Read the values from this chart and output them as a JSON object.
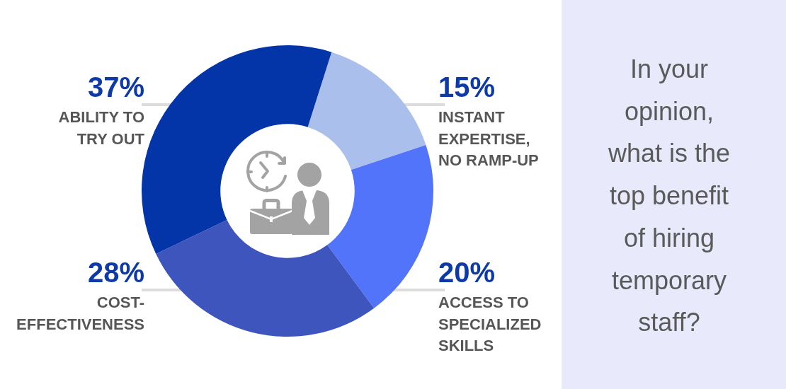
{
  "chart_data": {
    "type": "donut",
    "title": "In your opinion, what is the top benefit of hiring temporary staff?",
    "categories": [
      "INSTANT EXPERTISE, NO RAMP-UP",
      "ACCESS TO SPECIALIZED SKILLS",
      "COST-EFFECTIVENESS",
      "ABILITY TO TRY OUT"
    ],
    "values": [
      15,
      20,
      28,
      37
    ],
    "colors": [
      "#abbfec",
      "#5274fa",
      "#3f55be",
      "#0335a8"
    ],
    "value_labels": [
      "15%",
      "20%",
      "28%",
      "37%"
    ]
  }
}
